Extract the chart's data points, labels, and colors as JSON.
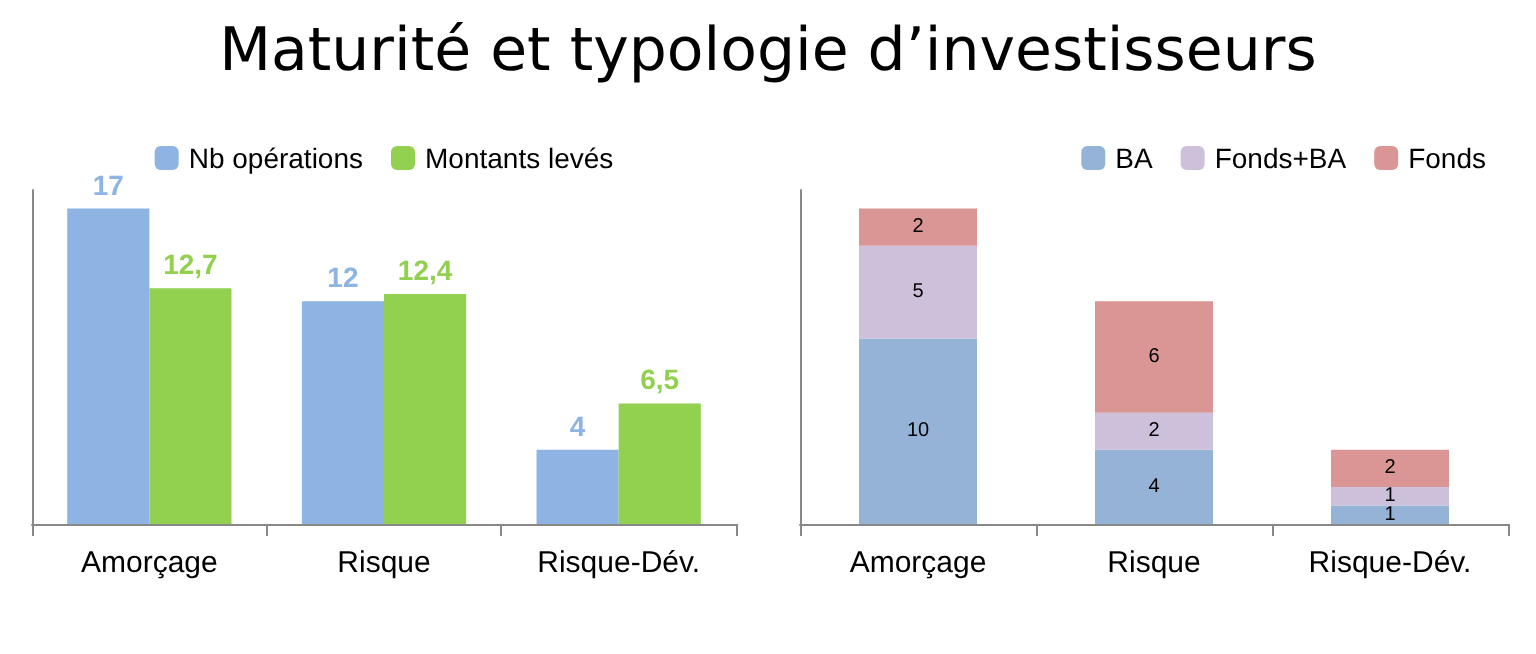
{
  "chart_data": [
    {
      "type": "bar",
      "title": "Maturité et typologie d’investisseurs",
      "categories": [
        "Amorçage",
        "Risque",
        "Risque-Dév."
      ],
      "series": [
        {
          "name": "Nb opérations",
          "color": "#8db4e2",
          "values": [
            17,
            12,
            4
          ],
          "value_labels": [
            "17",
            "12",
            "4"
          ]
        },
        {
          "name": "Montants levés",
          "color": "#92d050",
          "values": [
            12.7,
            12.4,
            6.5
          ],
          "value_labels": [
            "12,7",
            "12,4",
            "6,5"
          ]
        }
      ],
      "legend": "top",
      "grid": false,
      "tick_labels": "x"
    },
    {
      "type": "bar",
      "stacked": true,
      "categories": [
        "Amorçage",
        "Risque",
        "Risque-Dév."
      ],
      "series": [
        {
          "name": "BA",
          "color": "#95b3d7",
          "values": [
            10,
            4,
            1
          ]
        },
        {
          "name": "Fonds+BA",
          "color": "#ccc0da",
          "values": [
            5,
            2,
            1
          ]
        },
        {
          "name": "Fonds",
          "color": "#da9694",
          "values": [
            2,
            6,
            2
          ]
        }
      ],
      "data_labels": true,
      "legend": "top right",
      "grid": false,
      "tick_labels": "x"
    }
  ]
}
